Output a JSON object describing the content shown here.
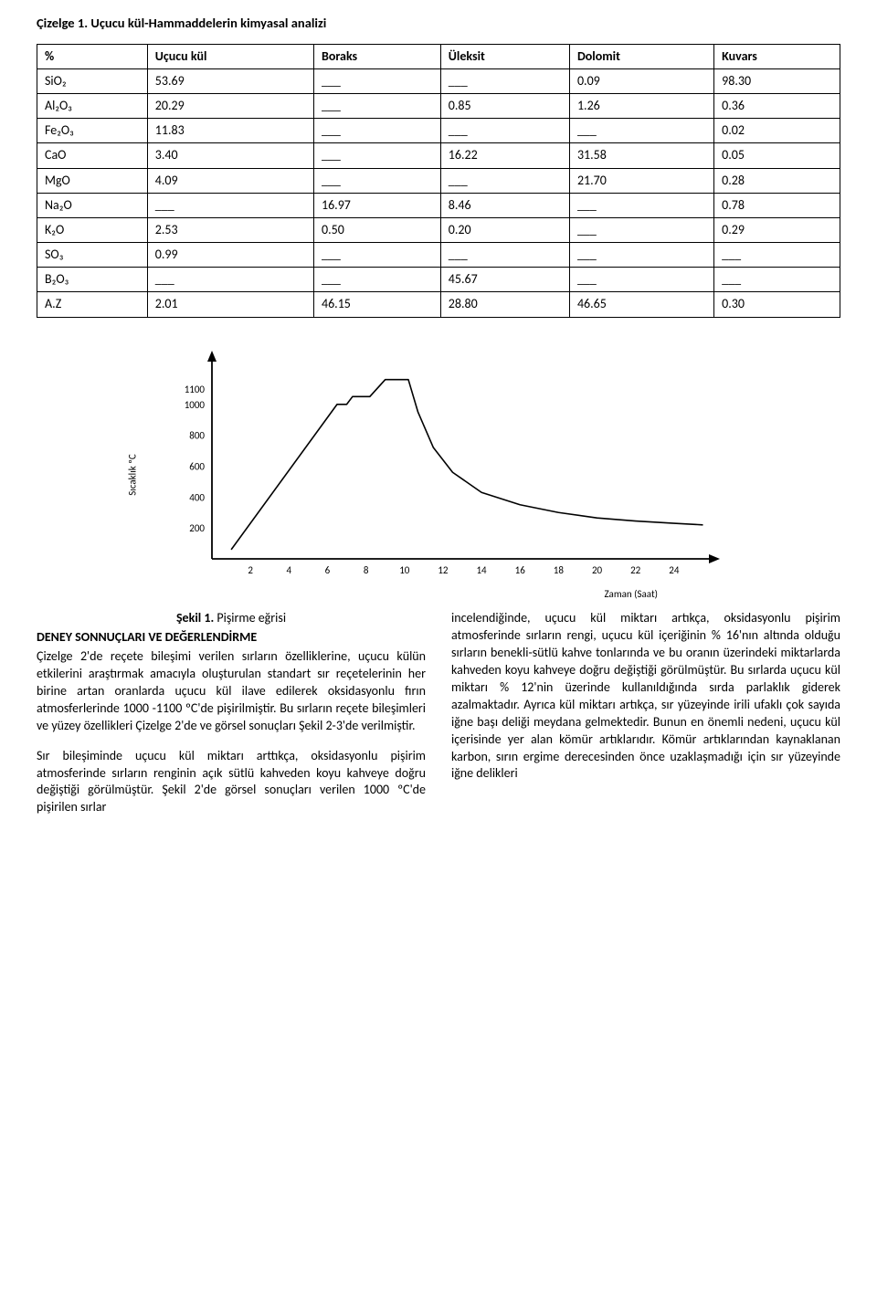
{
  "table_caption": "Çizelge 1. Uçucu kül-Hammaddelerin kimyasal analizi",
  "table": {
    "headers": [
      "%",
      "Uçucu kül",
      "Boraks",
      "Üleksit",
      "Dolomit",
      "Kuvars"
    ],
    "rows": [
      [
        "SiO₂",
        "53.69",
        "___",
        "___",
        "0.09",
        "98.30"
      ],
      [
        "Al₂O₃",
        "20.29",
        "___",
        "0.85",
        "1.26",
        "0.36"
      ],
      [
        "Fe₂O₃",
        "11.83",
        "___",
        "___",
        "___",
        "0.02"
      ],
      [
        "CaO",
        "3.40",
        "___",
        "16.22",
        "31.58",
        "0.05"
      ],
      [
        "MgO",
        "4.09",
        "___",
        "___",
        "21.70",
        "0.28"
      ],
      [
        "Na₂O",
        "___",
        "16.97",
        "8.46",
        "___",
        "0.78"
      ],
      [
        "K₂O",
        "2.53",
        "0.50",
        "0.20",
        "___",
        "0.29"
      ],
      [
        "SO₃",
        "0.99",
        "___",
        "___",
        "___",
        "___"
      ],
      [
        "B₂O₃",
        "___",
        "___",
        "45.67",
        "___",
        "___"
      ],
      [
        "A.Z",
        "2.01",
        "46.15",
        "28.80",
        "46.65",
        "0.30"
      ]
    ],
    "separators_after": [
      1,
      4,
      6,
      7,
      8
    ]
  },
  "chart": {
    "type": "line",
    "ylabel": "Sıcaklık ºC",
    "xlabel": "Zaman (Saat)",
    "y_ticks": [
      "1100",
      "1000",
      "800",
      "600",
      "400",
      "200"
    ],
    "x_ticks": [
      "2",
      "4",
      "6",
      "8",
      "10",
      "12",
      "14",
      "16",
      "18",
      "20",
      "22",
      "24"
    ],
    "xlim": [
      0,
      26
    ],
    "ylim": [
      0,
      1300
    ],
    "points": [
      [
        1,
        60
      ],
      [
        6.5,
        1000
      ],
      [
        7,
        1000
      ],
      [
        7.3,
        1050
      ],
      [
        8.2,
        1050
      ],
      [
        9,
        1160
      ],
      [
        10.2,
        1160
      ],
      [
        10.7,
        950
      ],
      [
        11.5,
        720
      ],
      [
        12.5,
        560
      ],
      [
        14,
        430
      ],
      [
        16,
        350
      ],
      [
        18,
        300
      ],
      [
        20,
        265
      ],
      [
        22,
        245
      ],
      [
        24,
        230
      ],
      [
        25.5,
        220
      ]
    ],
    "line_color": "#000000",
    "line_width": 1.6,
    "tick_fontsize": 11,
    "background_color": "#ffffff"
  },
  "fig_caption_bold": "Şekil 1.",
  "fig_caption_rest": " Pişirme eğrisi",
  "section_title": "DENEY SONNUÇLARI VE DEĞERLENDİRME",
  "body": {
    "p1": "Çizelge 2'de reçete bileşimi verilen sırların özelliklerine, uçucu külün etkilerini araştırmak amacıyla oluşturulan standart sır reçetelerinin her birine artan oranlarda uçucu kül ilave edilerek oksidasyonlu fırın atmosferlerinde 1000 -1100 ºC'de pişirilmiştir. Bu sırların reçete bileşimleri ve yüzey özellikleri Çizelge 2'de ve görsel sonuçları Şekil 2-3'de verilmiştir.",
    "p2": "Sır bileşiminde uçucu kül miktarı arttıkça, oksidasyonlu pişirim atmosferinde sırların renginin açık sütlü kahveden koyu kahveye doğru değiştiği görülmüştür. Şekil 2'de görsel sonuçları verilen 1000 ºC'de pişirilen sırlar",
    "p3": "incelendiğinde, uçucu kül miktarı artıkça, oksidasyonlu pişirim atmosferinde sırların rengi, uçucu kül içeriğinin % 16'nın altında olduğu sırların benekli-sütlü kahve tonlarında ve bu oranın üzerindeki miktarlarda kahveden koyu kahveye doğru değiştiği görülmüştür. Bu sırlarda uçucu kül miktarı % 12'nin üzerinde kullanıldığında sırda parlaklık giderek azalmaktadır. Ayrıca kül miktarı artıkça, sır yüzeyinde irili ufaklı çok sayıda iğne başı deliği meydana gelmektedir. Bunun en önemli nedeni, uçucu kül içerisinde yer alan kömür artıklarıdır. Kömür artıklarından kaynaklanan karbon, sırın ergime derecesinden önce uzaklaşmadığı için sır yüzeyinde iğne delikleri"
  }
}
